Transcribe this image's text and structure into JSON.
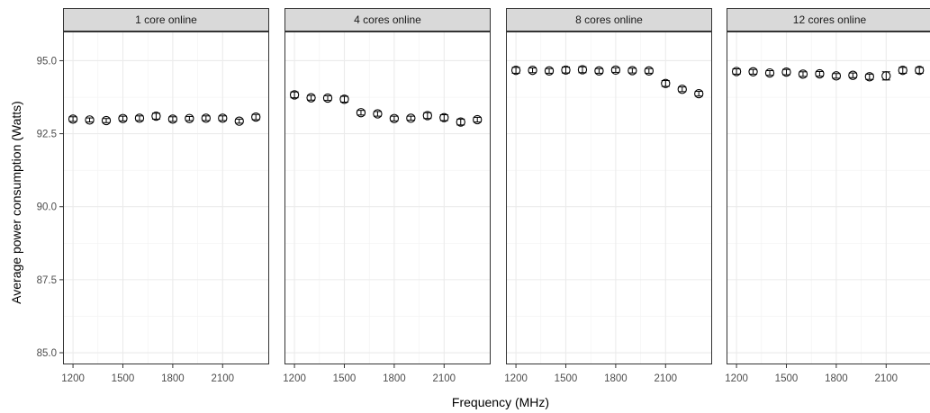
{
  "chart_data": {
    "type": "scatter",
    "xlabel": "Frequency (MHz)",
    "ylabel": "Average power consumption (Watts)",
    "xlim": [
      1140,
      2380
    ],
    "ylim": [
      84.6,
      96.0
    ],
    "x_ticks": [
      1200,
      1500,
      1800,
      2100
    ],
    "y_ticks": [
      85.0,
      87.5,
      90.0,
      92.5,
      95.0
    ],
    "y_tick_labels": [
      "85.0",
      "87.5",
      "90.0",
      "92.5",
      "95.0"
    ],
    "grid": true,
    "error_bars": true,
    "x": [
      1200,
      1300,
      1400,
      1500,
      1600,
      1700,
      1800,
      1900,
      2000,
      2100,
      2200,
      2300
    ],
    "panels": [
      {
        "title": "1 core online",
        "y": [
          93.0,
          92.97,
          92.95,
          93.02,
          93.03,
          93.1,
          93.0,
          93.02,
          93.03,
          93.03,
          92.93,
          93.07
        ],
        "err": [
          0.08,
          0.07,
          0.07,
          0.08,
          0.08,
          0.1,
          0.08,
          0.07,
          0.08,
          0.08,
          0.07,
          0.09
        ]
      },
      {
        "title": "4 cores online",
        "y": [
          93.83,
          93.73,
          93.72,
          93.68,
          93.22,
          93.18,
          93.02,
          93.03,
          93.12,
          93.05,
          92.9,
          92.98
        ],
        "err": [
          0.1,
          0.08,
          0.08,
          0.1,
          0.08,
          0.08,
          0.08,
          0.07,
          0.1,
          0.1,
          0.1,
          0.08
        ]
      },
      {
        "title": "8 cores online",
        "y": [
          94.67,
          94.67,
          94.65,
          94.68,
          94.69,
          94.65,
          94.68,
          94.66,
          94.65,
          94.22,
          94.02,
          93.87
        ],
        "err": [
          0.1,
          0.08,
          0.08,
          0.1,
          0.1,
          0.08,
          0.08,
          0.08,
          0.08,
          0.1,
          0.08,
          0.08
        ]
      },
      {
        "title": "12 cores online",
        "y": [
          94.63,
          94.62,
          94.58,
          94.61,
          94.54,
          94.55,
          94.48,
          94.5,
          94.45,
          94.48,
          94.67,
          94.67
        ],
        "err": [
          0.09,
          0.08,
          0.08,
          0.09,
          0.08,
          0.08,
          0.08,
          0.08,
          0.09,
          0.14,
          0.1,
          0.1
        ]
      }
    ]
  }
}
